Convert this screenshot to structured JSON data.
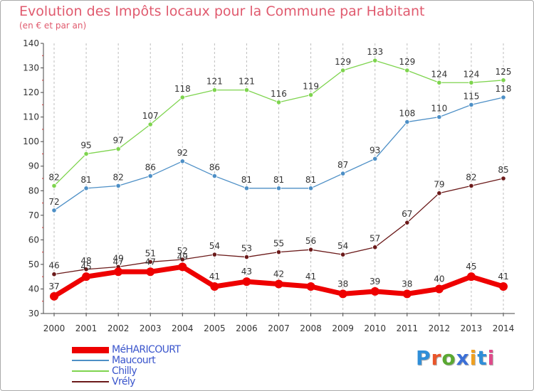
{
  "header": {
    "title": "Evolution des Impôts locaux pour la Commune par Habitant",
    "subtitle": "(en € et par an)"
  },
  "logo": {
    "text": "Proxiti",
    "letter_colors": [
      "#2f8ed8",
      "#e9552a",
      "#5aa832",
      "#3b6fd6",
      "#f0a020",
      "#2f8ed8",
      "#e04a8a"
    ]
  },
  "chart_data": {
    "type": "line",
    "title": "Evolution des Impôts locaux pour la Commune par Habitant",
    "subtitle": "(en € et par an)",
    "xlabel": "",
    "ylabel": "",
    "x": [
      "2000",
      "2001",
      "2002",
      "2003",
      "2004",
      "2005",
      "2006",
      "2007",
      "2008",
      "2009",
      "2010",
      "2011",
      "2012",
      "2013",
      "2014"
    ],
    "ylim": [
      30,
      140
    ],
    "yticks": [
      30,
      40,
      50,
      60,
      70,
      80,
      90,
      100,
      110,
      120,
      130,
      140
    ],
    "grid": "vertical-dashed",
    "legend_position": "bottom-left",
    "series": [
      {
        "name": "MéHARICOURT",
        "color": "#ee0000",
        "values": [
          37,
          45,
          47,
          47,
          49,
          41,
          43,
          42,
          41,
          38,
          39,
          38,
          40,
          45,
          41
        ]
      },
      {
        "name": "Maucourt",
        "color": "#4d8fc6",
        "values": [
          72,
          81,
          82,
          86,
          92,
          86,
          81,
          81,
          81,
          87,
          93,
          108,
          110,
          115,
          118
        ]
      },
      {
        "name": "Chilly",
        "color": "#7ed44e",
        "values": [
          82,
          95,
          97,
          107,
          118,
          121,
          121,
          116,
          119,
          129,
          133,
          129,
          124,
          124,
          125
        ]
      },
      {
        "name": "Vrély",
        "color": "#6b1a1a",
        "values": [
          46,
          48,
          49,
          51,
          52,
          54,
          53,
          55,
          56,
          54,
          57,
          67,
          79,
          82,
          85
        ]
      }
    ]
  }
}
